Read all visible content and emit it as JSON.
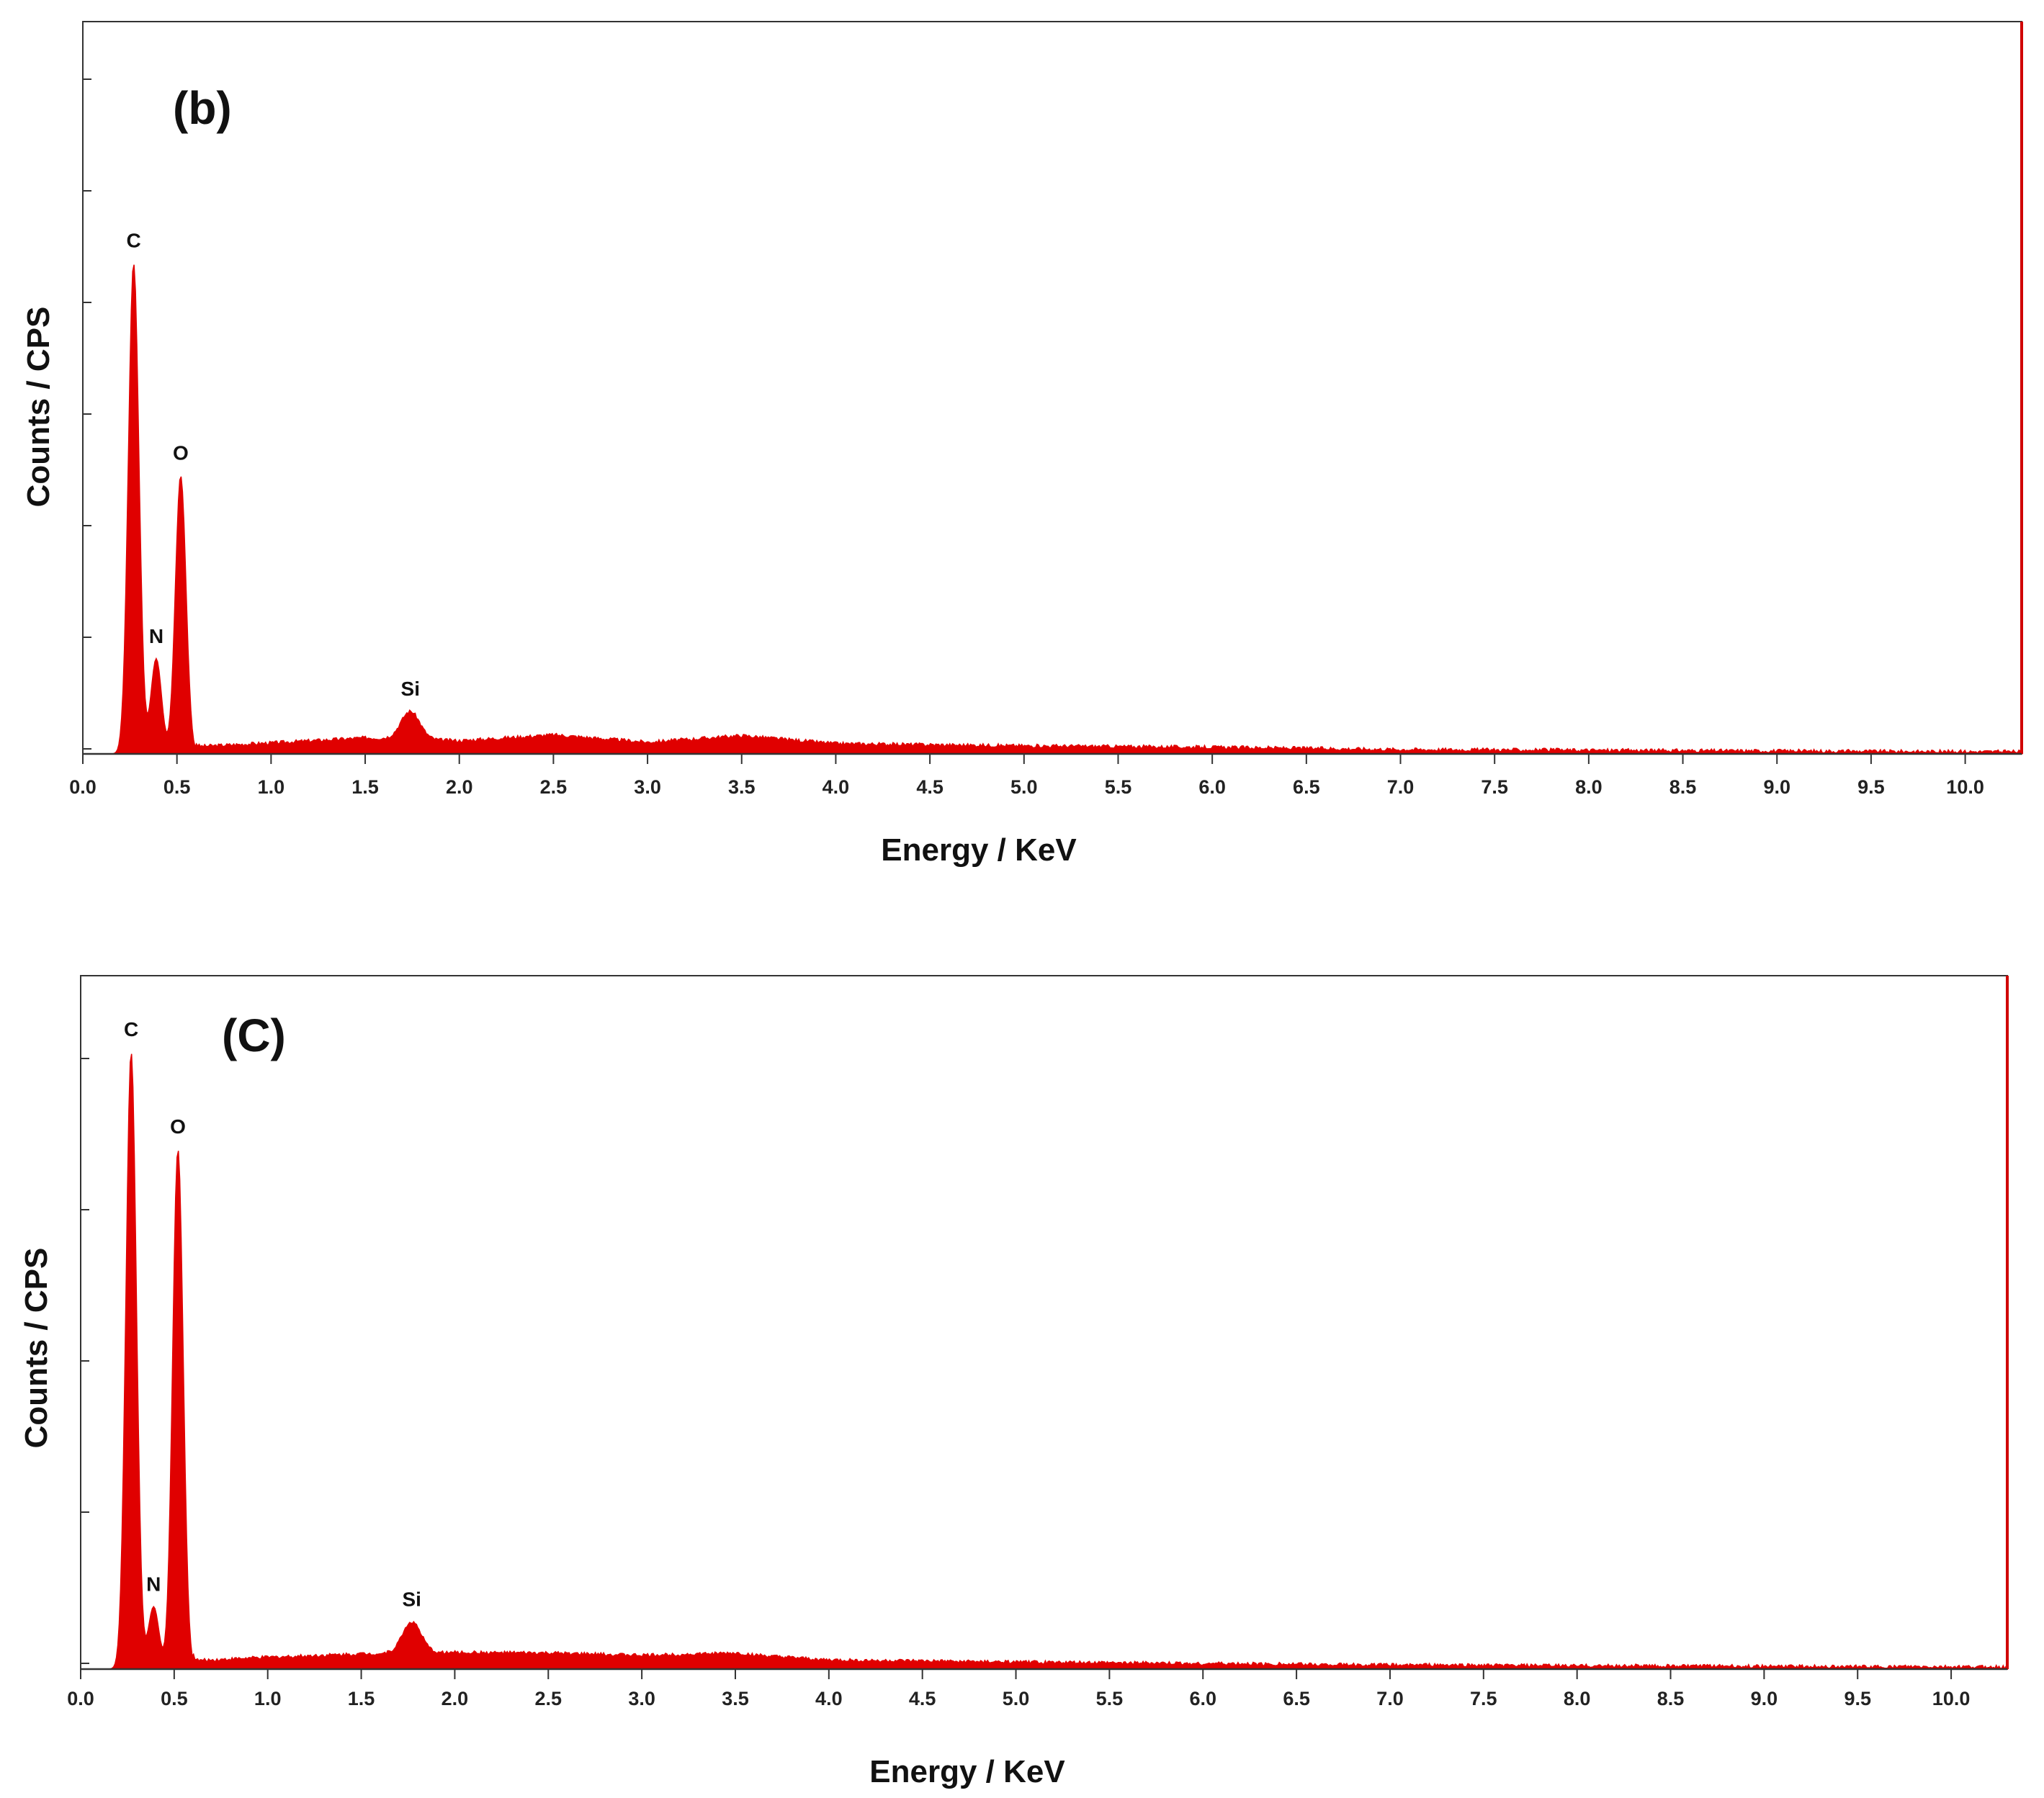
{
  "chart_data": [
    {
      "type": "area",
      "panel_label": "(b)",
      "xlabel": "Energy / KeV",
      "ylabel": "Counts / CPS",
      "xlim": [
        0.0,
        10.3
      ],
      "ylim": [
        0,
        100
      ],
      "y_tick_labels": "none",
      "x_ticks": [
        "0.0",
        "0.5",
        "1.0",
        "1.5",
        "2.0",
        "2.5",
        "3.0",
        "3.5",
        "4.0",
        "4.5",
        "5.0",
        "5.5",
        "6.0",
        "6.5",
        "7.0",
        "7.5",
        "8.0",
        "8.5",
        "9.0",
        "9.5",
        "10.0"
      ],
      "series_color": "#e00000",
      "peaks": [
        {
          "label": "C",
          "energy": 0.27,
          "height": 67
        },
        {
          "label": "N",
          "energy": 0.39,
          "height": 13
        },
        {
          "label": "O",
          "energy": 0.52,
          "height": 38
        },
        {
          "label": "Si",
          "energy": 1.74,
          "height": 3.8
        }
      ],
      "background": [
        [
          0.6,
          1
        ],
        [
          1.0,
          1.5
        ],
        [
          1.5,
          2.2
        ],
        [
          2.0,
          1.8
        ],
        [
          2.5,
          2.6
        ],
        [
          3.0,
          1.6
        ],
        [
          3.5,
          2.5
        ],
        [
          4.0,
          1.4
        ],
        [
          5.0,
          1.1
        ],
        [
          6.0,
          0.9
        ],
        [
          7.0,
          0.6
        ],
        [
          8.0,
          0.5
        ],
        [
          9.0,
          0.4
        ],
        [
          10.0,
          0.3
        ],
        [
          10.3,
          0.3
        ]
      ]
    },
    {
      "type": "area",
      "panel_label": "(C)",
      "xlabel": "Energy / KeV",
      "ylabel": "Counts / CPS",
      "xlim": [
        0.0,
        10.3
      ],
      "ylim": [
        0,
        100
      ],
      "y_tick_labels": "none",
      "x_ticks": [
        "0.0",
        "0.5",
        "1.0",
        "1.5",
        "2.0",
        "2.5",
        "3.0",
        "3.5",
        "4.0",
        "4.5",
        "5.0",
        "5.5",
        "6.0",
        "6.5",
        "7.0",
        "7.5",
        "8.0",
        "8.5",
        "9.0",
        "9.5",
        "10.0"
      ],
      "series_color": "#e00000",
      "peaks": [
        {
          "label": "C",
          "energy": 0.27,
          "height": 89
        },
        {
          "label": "N",
          "energy": 0.39,
          "height": 9
        },
        {
          "label": "O",
          "energy": 0.52,
          "height": 75
        },
        {
          "label": "Si",
          "energy": 1.77,
          "height": 4.5
        }
      ],
      "background": [
        [
          0.6,
          1.2
        ],
        [
          1.0,
          1.7
        ],
        [
          1.5,
          2.2
        ],
        [
          2.0,
          2.4
        ],
        [
          2.5,
          2.3
        ],
        [
          3.0,
          2.0
        ],
        [
          3.5,
          2.3
        ],
        [
          3.7,
          1.8
        ],
        [
          4.0,
          1.3
        ],
        [
          5.0,
          1.0
        ],
        [
          6.0,
          0.8
        ],
        [
          7.0,
          0.6
        ],
        [
          8.0,
          0.5
        ],
        [
          9.0,
          0.4
        ],
        [
          10.0,
          0.3
        ],
        [
          10.3,
          0.3
        ]
      ]
    }
  ]
}
